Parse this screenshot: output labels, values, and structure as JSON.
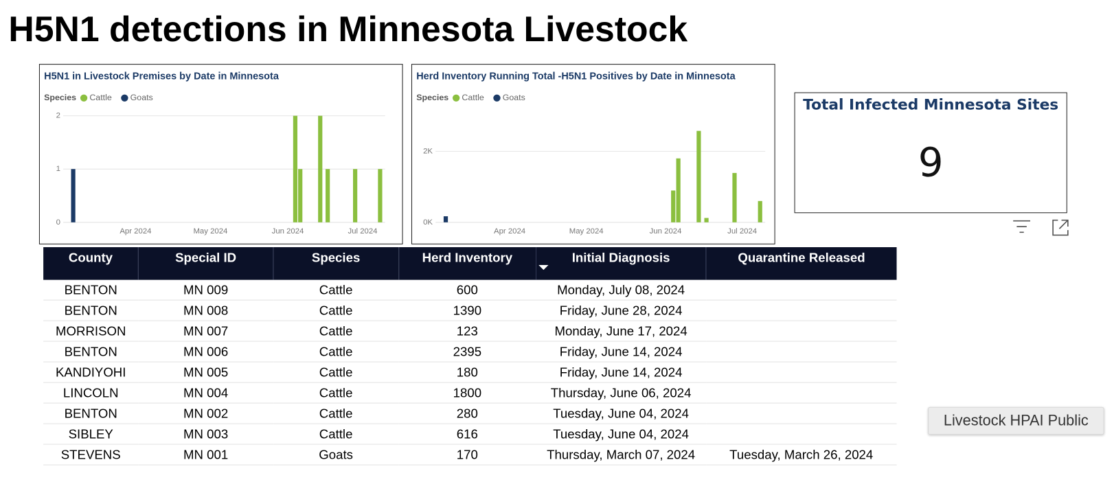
{
  "title": "H5N1 detections in Minnesota Livestock",
  "chart_data": [
    {
      "type": "bar",
      "title": "H5N1 in Livestock Premises by Date in Minnesota",
      "legend_title": "Species",
      "x": [
        "2024-03-07",
        "2024-06-04",
        "2024-06-06",
        "2024-06-14",
        "2024-06-17",
        "2024-06-28",
        "2024-07-08"
      ],
      "series": [
        {
          "name": "Cattle",
          "color": "#8bbf3f",
          "values": [
            null,
            2,
            1,
            2,
            1,
            1,
            1
          ]
        },
        {
          "name": "Goats",
          "color": "#1b3a66",
          "values": [
            1,
            null,
            null,
            null,
            null,
            null,
            null
          ]
        }
      ],
      "xlim": [
        "2024-03-03",
        "2024-07-10"
      ],
      "xticks": [
        {
          "value": "2024-04-01",
          "label": "Apr 2024"
        },
        {
          "value": "2024-05-01",
          "label": "May 2024"
        },
        {
          "value": "2024-06-01",
          "label": "Jun 2024"
        },
        {
          "value": "2024-07-01",
          "label": "Jul 2024"
        }
      ],
      "ylim": [
        0,
        2
      ],
      "yticks": [
        0,
        1,
        2
      ],
      "grid": true
    },
    {
      "type": "bar",
      "title": "Herd Inventory Running Total -H5N1 Positives by Date in Minnesota",
      "legend_title": "Species",
      "x": [
        "2024-03-07",
        "2024-06-04",
        "2024-06-06",
        "2024-06-14",
        "2024-06-17",
        "2024-06-28",
        "2024-07-08"
      ],
      "series": [
        {
          "name": "Cattle",
          "color": "#8bbf3f",
          "values": [
            null,
            896,
            1800,
            2575,
            123,
            1390,
            600
          ]
        },
        {
          "name": "Goats",
          "color": "#1b3a66",
          "values": [
            170,
            null,
            null,
            null,
            null,
            null,
            null
          ]
        }
      ],
      "xlim": [
        "2024-03-03",
        "2024-07-10"
      ],
      "xticks": [
        {
          "value": "2024-04-01",
          "label": "Apr 2024"
        },
        {
          "value": "2024-05-01",
          "label": "May 2024"
        },
        {
          "value": "2024-06-01",
          "label": "Jun 2024"
        },
        {
          "value": "2024-07-01",
          "label": "Jul 2024"
        }
      ],
      "ylim": [
        0,
        2800
      ],
      "yticks": [
        {
          "value": 0,
          "label": "0K"
        },
        {
          "value": 2000,
          "label": "2K"
        }
      ],
      "grid": true
    }
  ],
  "card": {
    "title": "Total Infected Minnesota Sites",
    "value": 9
  },
  "table": {
    "columns": [
      "County",
      "Special ID",
      "Species",
      "Herd Inventory",
      "Initial Diagnosis",
      "Quarantine Released"
    ],
    "rows": [
      [
        "BENTON",
        "MN 009",
        "Cattle",
        600,
        "Monday, July 08, 2024",
        null
      ],
      [
        "BENTON",
        "MN 008",
        "Cattle",
        1390,
        "Friday, June 28, 2024",
        null
      ],
      [
        "MORRISON",
        "MN 007",
        "Cattle",
        123,
        "Monday, June 17, 2024",
        null
      ],
      [
        "BENTON",
        "MN 006",
        "Cattle",
        2395,
        "Friday, June 14, 2024",
        null
      ],
      [
        "KANDIYOHI",
        "MN 005",
        "Cattle",
        180,
        "Friday, June 14, 2024",
        null
      ],
      [
        "LINCOLN",
        "MN 004",
        "Cattle",
        1800,
        "Thursday, June 06, 2024",
        null
      ],
      [
        "BENTON",
        "MN 002",
        "Cattle",
        280,
        "Tuesday, June 04, 2024",
        null
      ],
      [
        "SIBLEY",
        "MN 003",
        "Cattle",
        616,
        "Tuesday, June 04, 2024",
        null
      ],
      [
        "STEVENS",
        "MN 001",
        "Goats",
        170,
        "Thursday, March 07, 2024",
        "Tuesday, March 26, 2024"
      ]
    ]
  },
  "button": "Livestock HPAI Public"
}
